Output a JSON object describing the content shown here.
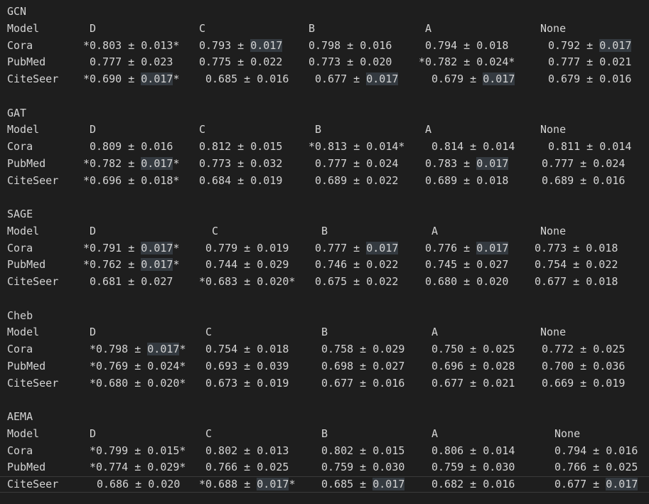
{
  "editor": {
    "lines": [
      {
        "tokens": [
          {
            "t": "GCN"
          }
        ]
      },
      {
        "tokens": [
          {
            "t": "Model"
          },
          {
            "t": "D"
          },
          {
            "t": "C"
          },
          {
            "t": "B"
          },
          {
            "t": "A"
          },
          {
            "t": "None"
          }
        ]
      },
      {
        "tokens": [
          {
            "t": "Cora"
          },
          {
            "t": "*0.803 ± 0.013*"
          },
          {
            "t": "0.793 ± ",
            "h": "0.017"
          },
          {
            "t": "0.798 ± 0.016"
          },
          {
            "t": "0.794 ± 0.018"
          },
          {
            "t": "0.792 ± ",
            "h": "0.017"
          }
        ]
      },
      {
        "tokens": [
          {
            "t": "PubMed"
          },
          {
            "t": "0.777 ± 0.023"
          },
          {
            "t": "0.775 ± 0.022"
          },
          {
            "t": "0.773 ± 0.020"
          },
          {
            "t": "*0.782 ± 0.024*"
          },
          {
            "t": "0.777 ± 0.021"
          }
        ]
      },
      {
        "tokens": [
          {
            "t": "CiteSeer"
          },
          {
            "t": "*0.690 ± ",
            "h": "0.017",
            "a": "*"
          },
          {
            "t": "0.685 ± 0.016"
          },
          {
            "t": "0.677 ± ",
            "h": "0.017"
          },
          {
            "t": "0.679 ± ",
            "h": "0.017"
          },
          {
            "t": "0.679 ± 0.016"
          }
        ]
      },
      {
        "tokens": []
      },
      {
        "tokens": [
          {
            "t": "GAT"
          }
        ]
      },
      {
        "tokens": [
          {
            "t": "Model"
          },
          {
            "t": "D"
          },
          {
            "t": "C"
          },
          {
            "t": "B"
          },
          {
            "t": "A"
          },
          {
            "t": "None"
          }
        ]
      },
      {
        "tokens": [
          {
            "t": "Cora"
          },
          {
            "t": "0.809 ± 0.016"
          },
          {
            "t": "0.812 ± 0.015"
          },
          {
            "t": "*0.813 ± 0.014*"
          },
          {
            "t": "0.814 ± 0.014"
          },
          {
            "t": "0.811 ± 0.014"
          }
        ]
      },
      {
        "tokens": [
          {
            "t": "PubMed"
          },
          {
            "t": "*0.782 ± ",
            "h": "0.017",
            "a": "*"
          },
          {
            "t": "0.773 ± 0.032"
          },
          {
            "t": "0.777 ± 0.024"
          },
          {
            "t": "0.783 ± ",
            "h": "0.017"
          },
          {
            "t": "0.777 ± 0.024"
          }
        ]
      },
      {
        "tokens": [
          {
            "t": "CiteSeer"
          },
          {
            "t": "*0.696 ± 0.018*"
          },
          {
            "t": "0.684 ± 0.019"
          },
          {
            "t": "0.689 ± 0.022"
          },
          {
            "t": "0.689 ± 0.018"
          },
          {
            "t": "0.689 ± 0.016"
          }
        ]
      },
      {
        "tokens": []
      },
      {
        "tokens": [
          {
            "t": "SAGE"
          }
        ]
      },
      {
        "tokens": [
          {
            "t": "Model"
          },
          {
            "t": "D"
          },
          {
            "t": "C"
          },
          {
            "t": "B"
          },
          {
            "t": "A"
          },
          {
            "t": "None"
          }
        ]
      },
      {
        "tokens": [
          {
            "t": "Cora"
          },
          {
            "t": "*0.791 ± ",
            "h": "0.017",
            "a": "*"
          },
          {
            "t": "0.779 ± 0.019"
          },
          {
            "t": "0.777 ± ",
            "h": "0.017"
          },
          {
            "t": "0.776 ± ",
            "h": "0.017"
          },
          {
            "t": "0.773 ± 0.018"
          }
        ]
      },
      {
        "tokens": [
          {
            "t": "PubMed"
          },
          {
            "t": "*0.762 ± ",
            "h": "0.017",
            "a": "*"
          },
          {
            "t": "0.744 ± 0.029"
          },
          {
            "t": "0.746 ± 0.022"
          },
          {
            "t": "0.745 ± 0.027"
          },
          {
            "t": "0.754 ± 0.022"
          }
        ]
      },
      {
        "tokens": [
          {
            "t": "CiteSeer"
          },
          {
            "t": "0.681 ± 0.027"
          },
          {
            "t": "*0.683 ± 0.020*"
          },
          {
            "t": "0.675 ± 0.022"
          },
          {
            "t": "0.680 ± 0.020"
          },
          {
            "t": "0.677 ± 0.018"
          }
        ]
      },
      {
        "tokens": []
      },
      {
        "tokens": [
          {
            "t": "Cheb"
          }
        ]
      },
      {
        "tokens": [
          {
            "t": "Model"
          },
          {
            "t": "D"
          },
          {
            "t": "C"
          },
          {
            "t": "B"
          },
          {
            "t": "A"
          },
          {
            "t": "None"
          }
        ]
      },
      {
        "tokens": [
          {
            "t": "Cora"
          },
          {
            "t": "*0.798 ± ",
            "h": "0.017",
            "a": "*"
          },
          {
            "t": "0.754 ± 0.018"
          },
          {
            "t": "0.758 ± 0.029"
          },
          {
            "t": "0.750 ± 0.025"
          },
          {
            "t": "0.772 ± 0.025"
          }
        ]
      },
      {
        "tokens": [
          {
            "t": "PubMed"
          },
          {
            "t": "*0.769 ± 0.024*"
          },
          {
            "t": "0.693 ± 0.039"
          },
          {
            "t": "0.698 ± 0.027"
          },
          {
            "t": "0.696 ± 0.028"
          },
          {
            "t": "0.700 ± 0.036"
          }
        ]
      },
      {
        "tokens": [
          {
            "t": "CiteSeer"
          },
          {
            "t": "*0.680 ± 0.020*"
          },
          {
            "t": "0.673 ± 0.019"
          },
          {
            "t": "0.677 ± 0.016"
          },
          {
            "t": "0.677 ± 0.021"
          },
          {
            "t": "0.669 ± 0.019"
          }
        ]
      },
      {
        "tokens": []
      },
      {
        "tokens": [
          {
            "t": "AEMA"
          }
        ]
      },
      {
        "tokens": [
          {
            "t": "Model"
          },
          {
            "t": "D"
          },
          {
            "t": "C"
          },
          {
            "t": "B"
          },
          {
            "t": "A"
          },
          {
            "t": "None"
          }
        ]
      },
      {
        "tokens": [
          {
            "t": "Cora"
          },
          {
            "t": "*0.799 ± 0.015*"
          },
          {
            "t": "0.802 ± 0.013"
          },
          {
            "t": "0.802 ± 0.015"
          },
          {
            "t": "0.806 ± 0.014"
          },
          {
            "t": "0.794 ± 0.016"
          }
        ]
      },
      {
        "tokens": [
          {
            "t": "PubMed"
          },
          {
            "t": "*0.774 ± 0.029*"
          },
          {
            "t": "0.766 ± 0.025"
          },
          {
            "t": "0.759 ± 0.030"
          },
          {
            "t": "0.759 ± 0.030"
          },
          {
            "t": "0.766 ± 0.025"
          }
        ]
      },
      {
        "tokens": [
          {
            "t": "CiteSeer"
          },
          {
            "t": "0.686 ± 0.020"
          },
          {
            "t": "*0.688 ± ",
            "h": "0.017",
            "a": "*"
          },
          {
            "t": "0.685 ± ",
            "h": "0.017"
          },
          {
            "t": "0.682 ± 0.016"
          },
          {
            "t": "0.677 ± ",
            "h": "0.017"
          }
        ]
      }
    ]
  }
}
